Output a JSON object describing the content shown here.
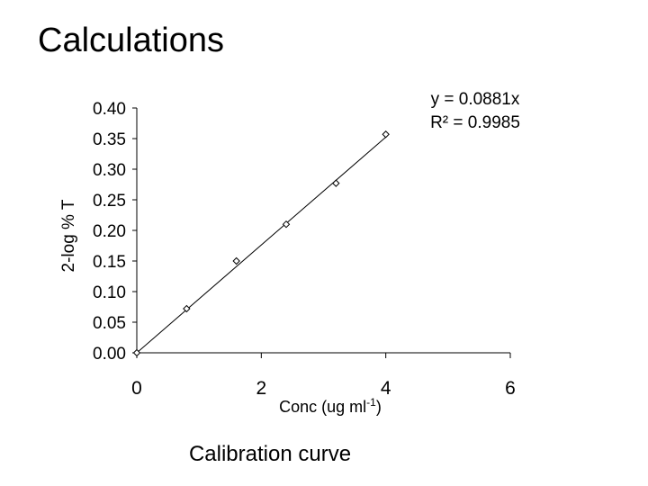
{
  "slide": {
    "title": "Calculations",
    "caption": "Calibration curve"
  },
  "chart_data": {
    "type": "scatter",
    "xlabel_main": "Conc (ug ml",
    "xlabel_sup": "-1",
    "xlabel_close": ")",
    "ylabel": "2-log % T",
    "xlim": [
      0,
      6
    ],
    "ylim": [
      0,
      0.4
    ],
    "x_ticks": [
      0,
      2,
      4,
      6
    ],
    "y_ticks": [
      0.0,
      0.05,
      0.1,
      0.15,
      0.2,
      0.25,
      0.3,
      0.35,
      0.4
    ],
    "x_tick_labels": [
      "0",
      "2",
      "4",
      "6"
    ],
    "y_tick_labels": [
      "0.00",
      "0.05",
      "0.10",
      "0.15",
      "0.20",
      "0.25",
      "0.30",
      "0.35",
      "0.40"
    ],
    "grid": false,
    "marker": "diamond",
    "series": [
      {
        "x": [
          0,
          0.8,
          1.6,
          2.4,
          3.2,
          4.0
        ],
        "y": [
          0.0,
          0.072,
          0.15,
          0.21,
          0.277,
          0.357
        ]
      }
    ],
    "trendline": {
      "slope": 0.0881,
      "intercept": 0,
      "x_range": [
        0,
        4.0
      ],
      "equation": "y = 0.0881x",
      "r_squared": "R² = 0.9985"
    }
  }
}
